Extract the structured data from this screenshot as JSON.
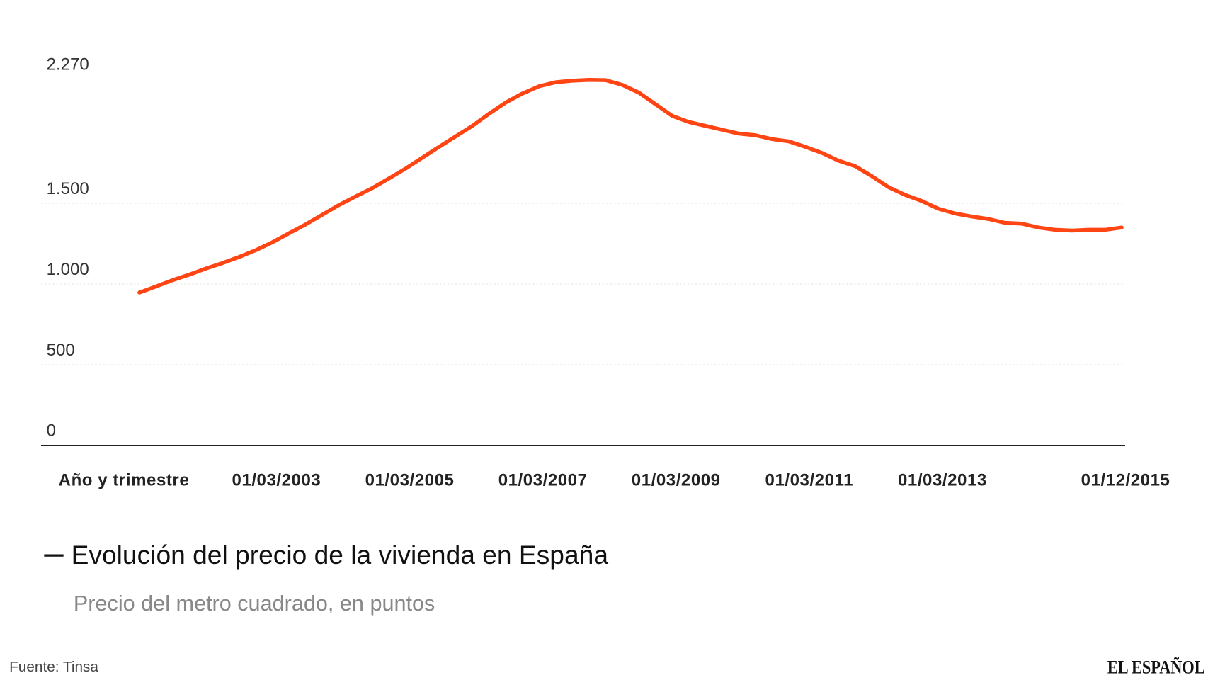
{
  "chart_data": {
    "type": "line",
    "title": "Evolución del precio de la vivienda en España",
    "subtitle": "Precio del metro cuadrado, en puntos",
    "xlabel": "Año y trimestre",
    "source": "Fuente: Tinsa",
    "brand": "EL ESPAÑOL",
    "categories": [
      null,
      null,
      null,
      null,
      null,
      null,
      null,
      null,
      "01/03/2003",
      null,
      null,
      null,
      null,
      null,
      null,
      null,
      "01/03/2005",
      null,
      null,
      null,
      null,
      null,
      null,
      null,
      "01/03/2007",
      null,
      null,
      null,
      null,
      null,
      null,
      null,
      "01/03/2009",
      null,
      null,
      null,
      null,
      null,
      null,
      null,
      "01/03/2011",
      null,
      null,
      null,
      null,
      null,
      null,
      null,
      "01/03/2013",
      null,
      null,
      null,
      null,
      null,
      null,
      null,
      null,
      null,
      null,
      "01/12/2015"
    ],
    "series": [
      {
        "color": "#ff4514",
        "values": [
          947,
          985,
          1024,
          1058,
          1096,
          1130,
          1168,
          1210,
          1259,
          1315,
          1370,
          1430,
          1490,
          1543,
          1595,
          1655,
          1716,
          1783,
          1850,
          1915,
          1980,
          2055,
          2124,
          2180,
          2225,
          2250,
          2260,
          2265,
          2263,
          2234,
          2186,
          2114,
          2042,
          2004,
          1980,
          1956,
          1932,
          1922,
          1898,
          1884,
          1850,
          1812,
          1764,
          1730,
          1668,
          1600,
          1552,
          1514,
          1466,
          1437,
          1418,
          1403,
          1379,
          1374,
          1350,
          1336,
          1331,
          1336,
          1336,
          1350
        ]
      }
    ],
    "ylim": [
      0,
      2270
    ],
    "yticks": [
      0,
      500,
      {
        "value": 1000,
        "label": "1.000"
      },
      {
        "value": 1500,
        "label": "1.500"
      },
      {
        "value": 2270,
        "label": "2.270"
      }
    ],
    "grid": true
  }
}
